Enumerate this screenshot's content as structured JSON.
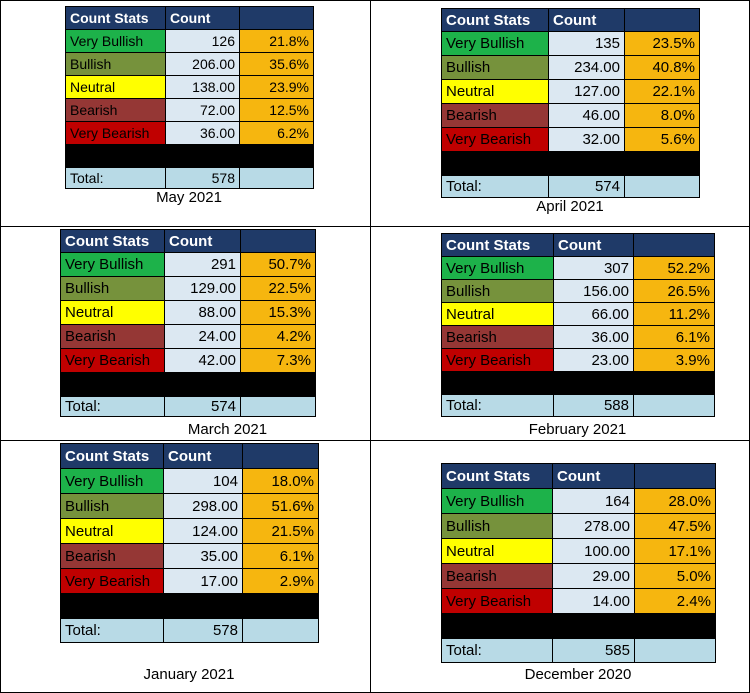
{
  "header": {
    "col1": "Count Stats",
    "col2": "Count",
    "col3": ""
  },
  "total_label": "Total:",
  "categories": [
    "Very Bullish",
    "Bullish",
    "Neutral",
    "Bearish",
    "Very Bearish"
  ],
  "colors": {
    "header": "#1f3a68",
    "very_bullish": "#1db24a",
    "bullish": "#76923c",
    "neutral": "#ffff00",
    "bearish": "#953735",
    "very_bearish": "#c00000",
    "count_cell": "#dce8f2",
    "pct_cell": "#f6b60f",
    "total_row": "#b8dae6"
  },
  "panels": [
    {
      "caption": "May 2021",
      "rows": [
        {
          "count": "126",
          "pct": "21.8%"
        },
        {
          "count": "206.00",
          "pct": "35.6%"
        },
        {
          "count": "138.00",
          "pct": "23.9%"
        },
        {
          "count": "72.00",
          "pct": "12.5%"
        },
        {
          "count": "36.00",
          "pct": "6.2%"
        }
      ],
      "total": "578"
    },
    {
      "caption": "April 2021",
      "rows": [
        {
          "count": "135",
          "pct": "23.5%"
        },
        {
          "count": "234.00",
          "pct": "40.8%"
        },
        {
          "count": "127.00",
          "pct": "22.1%"
        },
        {
          "count": "46.00",
          "pct": "8.0%"
        },
        {
          "count": "32.00",
          "pct": "5.6%"
        }
      ],
      "total": "574"
    },
    {
      "caption": "March 2021",
      "rows": [
        {
          "count": "291",
          "pct": "50.7%"
        },
        {
          "count": "129.00",
          "pct": "22.5%"
        },
        {
          "count": "88.00",
          "pct": "15.3%"
        },
        {
          "count": "24.00",
          "pct": "4.2%"
        },
        {
          "count": "42.00",
          "pct": "7.3%"
        }
      ],
      "total": "574"
    },
    {
      "caption": "February 2021",
      "rows": [
        {
          "count": "307",
          "pct": "52.2%"
        },
        {
          "count": "156.00",
          "pct": "26.5%"
        },
        {
          "count": "66.00",
          "pct": "11.2%"
        },
        {
          "count": "36.00",
          "pct": "6.1%"
        },
        {
          "count": "23.00",
          "pct": "3.9%"
        }
      ],
      "total": "588"
    },
    {
      "caption": "January 2021",
      "rows": [
        {
          "count": "104",
          "pct": "18.0%"
        },
        {
          "count": "298.00",
          "pct": "51.6%"
        },
        {
          "count": "124.00",
          "pct": "21.5%"
        },
        {
          "count": "35.00",
          "pct": "6.1%"
        },
        {
          "count": "17.00",
          "pct": "2.9%"
        }
      ],
      "total": "578"
    },
    {
      "caption": "December 2020",
      "rows": [
        {
          "count": "164",
          "pct": "28.0%"
        },
        {
          "count": "278.00",
          "pct": "47.5%"
        },
        {
          "count": "100.00",
          "pct": "17.1%"
        },
        {
          "count": "29.00",
          "pct": "5.0%"
        },
        {
          "count": "14.00",
          "pct": "2.4%"
        }
      ],
      "total": "585"
    }
  ]
}
